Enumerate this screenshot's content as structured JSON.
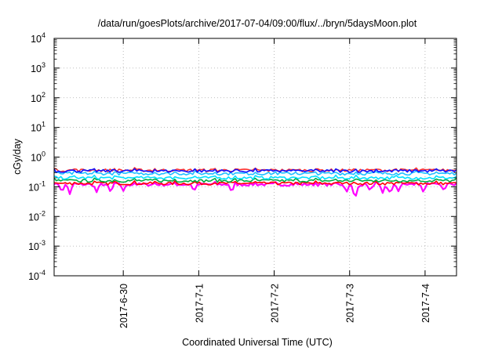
{
  "chart_data": {
    "type": "line",
    "title": "/data/run/goesPlots/archive/2017-07-04/09:00/flux/../bryn/5daysMoon.plot",
    "xlabel": "Coordinated Universal Time (UTC)",
    "ylabel": "cGy/day",
    "yscale": "log",
    "ylim": [
      0.0001,
      10000
    ],
    "xlim": [
      "2017-06-29T02:00",
      "2017-07-04T10:00"
    ],
    "grid": true,
    "y_ticks": [
      {
        "value": 0.0001,
        "base": "10",
        "exp": "-4"
      },
      {
        "value": 0.001,
        "base": "10",
        "exp": "-3"
      },
      {
        "value": 0.01,
        "base": "10",
        "exp": "-2"
      },
      {
        "value": 0.1,
        "base": "10",
        "exp": "-1"
      },
      {
        "value": 1,
        "base": "10",
        "exp": "0"
      },
      {
        "value": 10,
        "base": "10",
        "exp": "1"
      },
      {
        "value": 100,
        "base": "10",
        "exp": "2"
      },
      {
        "value": 1000,
        "base": "10",
        "exp": "3"
      },
      {
        "value": 10000,
        "base": "10",
        "exp": "4"
      }
    ],
    "x_ticks": [
      {
        "value": "2017-06-30T00:00",
        "label": "2017-6-30"
      },
      {
        "value": "2017-07-01T00:00",
        "label": "2017-7-1"
      },
      {
        "value": "2017-07-02T00:00",
        "label": "2017-7-2"
      },
      {
        "value": "2017-07-03T00:00",
        "label": "2017-7-3"
      },
      {
        "value": "2017-07-04T00:00",
        "label": "2017-7-4"
      }
    ],
    "series": [
      {
        "color": "#ff00ff",
        "base": 0.12,
        "dips": [
          {
            "x": "2017-06-29T04:30",
            "y": 0.06
          },
          {
            "x": "2017-06-29T07:00",
            "y": 0.055
          },
          {
            "x": "2017-06-29T15:30",
            "y": 0.065
          },
          {
            "x": "2017-06-29T20:00",
            "y": 0.06
          },
          {
            "x": "2017-06-30T00:00",
            "y": 0.07
          },
          {
            "x": "2017-06-30T22:30",
            "y": 0.065
          },
          {
            "x": "2017-07-01T10:30",
            "y": 0.06
          },
          {
            "x": "2017-07-02T23:00",
            "y": 0.06
          },
          {
            "x": "2017-07-03T01:30",
            "y": 0.045
          },
          {
            "x": "2017-07-03T02:00",
            "y": 0.05
          },
          {
            "x": "2017-07-03T06:30",
            "y": 0.07
          },
          {
            "x": "2017-07-03T10:30",
            "y": 0.06
          },
          {
            "x": "2017-07-03T12:30",
            "y": 0.06
          },
          {
            "x": "2017-07-03T13:00",
            "y": 0.055
          },
          {
            "x": "2017-07-03T15:30",
            "y": 0.07
          },
          {
            "x": "2017-07-03T23:30",
            "y": 0.06
          },
          {
            "x": "2017-07-04T06:00",
            "y": 0.07
          }
        ]
      },
      {
        "color": "#ff0000",
        "base": 0.13
      },
      {
        "color": "#00aa44",
        "base": 0.16
      },
      {
        "color": "#00e0ff",
        "base": 0.2
      },
      {
        "color": "#20c0ff",
        "base": 0.28
      },
      {
        "color": "#ff3030",
        "base": 0.36
      },
      {
        "color": "#1010ff",
        "base": 0.34
      }
    ]
  }
}
